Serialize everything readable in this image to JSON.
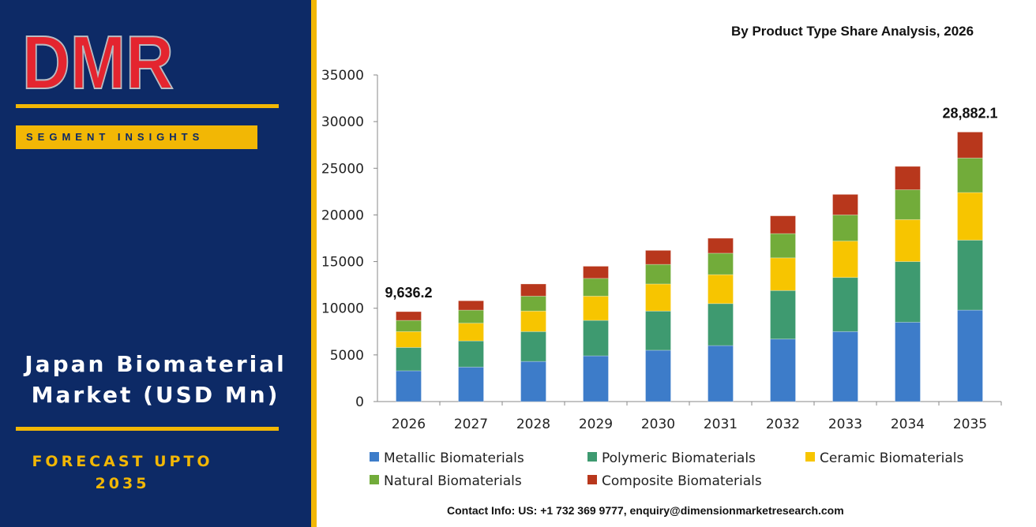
{
  "brand": {
    "logo_text": "DMR",
    "segment_label": "SEGMENT INSIGHTS",
    "title_line1": "Japan Biomaterial",
    "title_line2": "Market (USD Mn)",
    "forecast_line1": "FORECAST UPTO",
    "forecast_line2": "2035",
    "colors": {
      "navy": "#0d2a66",
      "gold": "#f2b705",
      "logo_red": "#e4252f",
      "logo_gray": "#b9bcc2"
    }
  },
  "footer": {
    "contact": "Contact Info: US: +1 732 369 9777, enquiry@dimensionmarketresearch.com"
  },
  "chart_data": {
    "type": "bar",
    "stacked": true,
    "title": "By Product Type Share Analysis, 2026",
    "xlabel": "",
    "ylabel": "",
    "ylim": [
      0,
      35000
    ],
    "yticks": [
      0,
      5000,
      10000,
      15000,
      20000,
      25000,
      30000,
      35000
    ],
    "grid": false,
    "legend_position": "bottom",
    "categories": [
      "2026",
      "2027",
      "2028",
      "2029",
      "2030",
      "2031",
      "2032",
      "2033",
      "2034",
      "2035"
    ],
    "series": [
      {
        "name": "Metallic Biomaterials",
        "color": "#3d7cc9",
        "values": [
          3300,
          3700,
          4300,
          4900,
          5500,
          6000,
          6700,
          7500,
          8500,
          9800
        ]
      },
      {
        "name": "Polymeric Biomaterials",
        "color": "#3e9a70",
        "values": [
          2500,
          2800,
          3200,
          3800,
          4200,
          4500,
          5200,
          5800,
          6500,
          7500
        ]
      },
      {
        "name": "Ceramic Biomaterials",
        "color": "#f7c500",
        "values": [
          1700,
          1900,
          2200,
          2600,
          2900,
          3100,
          3500,
          3900,
          4500,
          5100
        ]
      },
      {
        "name": "Natural Biomaterials",
        "color": "#72ac3a",
        "values": [
          1200,
          1400,
          1600,
          1900,
          2100,
          2300,
          2600,
          2800,
          3200,
          3700
        ]
      },
      {
        "name": "Composite Biomaterials",
        "color": "#b8371c",
        "values": [
          936.2,
          1000,
          1300,
          1300,
          1500,
          1600,
          1900,
          2200,
          2500,
          2782.1
        ]
      }
    ],
    "data_labels": [
      {
        "category": "2026",
        "text": "9,636.2"
      },
      {
        "category": "2035",
        "text": "28,882.1"
      }
    ]
  }
}
